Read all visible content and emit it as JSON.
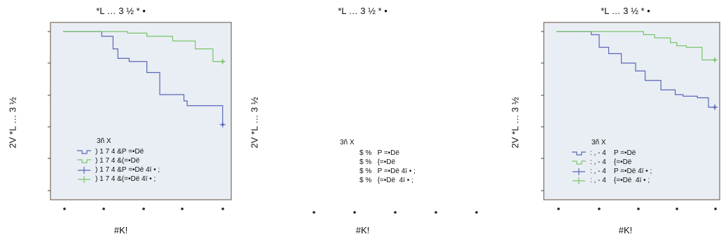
{
  "panels": [
    {
      "title": "*L … 3 ½ * •",
      "ylabel": "2V *L … 3 ½",
      "xlabel": "#K!",
      "legend_title": "3ñ X",
      "legend_items": [
        ") 1 7 4 &P =•Dë",
        ") 1 7 4 &(=•Dë",
        ") 1 7 4 &P =•Dë 4ï • ;",
        ") 1 7 4 &(=•Dë 4ï • ;"
      ]
    },
    {
      "title": "*L … 3 ½ * •",
      "ylabel": "2V *L … 3 ½",
      "xlabel": "#K!",
      "legend_title": "3ñ X",
      "legend_items": [
        "$ %   P =•Dë",
        "$ %   {=•Dë",
        "$ %   P =•Dë 4ï • ;",
        "$ %   {=•Dë  4ï • ;"
      ]
    },
    {
      "title": "*L … 3 ½ * •",
      "ylabel": "2V *L … 3 ½",
      "xlabel": "#K!",
      "legend_title": "3ñ X",
      "legend_items": [
        ": , - 4    P =•Dë",
        ": , - 4    {=•Dë",
        ": , - 4    P =•Dë 4ï • ;",
        ": , - 4    {=•Dë  4ï • ;"
      ]
    }
  ],
  "colors": {
    "blue": "#5a66b8",
    "green": "#7bc46b",
    "plot_bg": "#e9eef4",
    "frame": "#7a6a5a"
  },
  "chart_data": [
    {
      "type": "line",
      "xlim": [
        0,
        100
      ],
      "ylim": [
        0,
        1
      ],
      "grid": false,
      "legend_position": "bottom-left",
      "series": [
        {
          "name": ") 1 7 4 &P =•Dë",
          "step": true,
          "x": [
            0,
            24,
            31,
            34,
            41,
            52,
            60,
            75,
            77,
            86,
            99,
            100
          ],
          "y": [
            1,
            0.97,
            0.89,
            0.83,
            0.81,
            0.74,
            0.6,
            0.56,
            0.53,
            0.53,
            0.41,
            0.41
          ]
        },
        {
          "name": ") 1 7 4 &(=•Dë",
          "step": true,
          "x": [
            0,
            40,
            52,
            68,
            82,
            93,
            100
          ],
          "y": [
            1,
            0.99,
            0.97,
            0.94,
            0.89,
            0.81,
            0.81
          ]
        }
      ],
      "censored": [
        {
          "series": ") 1 7 4 &P =•Dë",
          "x": [
            99
          ],
          "y": [
            0.41
          ]
        },
        {
          "series": ") 1 7 4 &(=•Dë",
          "x": [
            99
          ],
          "y": [
            0.81
          ]
        }
      ]
    },
    {
      "type": "line",
      "xlim": [
        0,
        100
      ],
      "ylim": [
        0,
        1
      ],
      "grid": false,
      "legend_position": "bottom-left",
      "series": []
    },
    {
      "type": "line",
      "xlim": [
        0,
        100
      ],
      "ylim": [
        0,
        1
      ],
      "grid": false,
      "legend_position": "bottom-left",
      "series": [
        {
          "name": ": , - 4    P =•Dë",
          "step": true,
          "x": [
            0,
            22,
            27,
            33,
            41,
            50,
            56,
            66,
            75,
            80,
            89,
            96,
            100
          ],
          "y": [
            1,
            0.98,
            0.9,
            0.86,
            0.8,
            0.75,
            0.69,
            0.63,
            0.6,
            0.59,
            0.58,
            0.52,
            0.52
          ]
        },
        {
          "name": ": , - 4    {=•Dë",
          "step": true,
          "x": [
            0,
            55,
            62,
            72,
            76,
            82,
            92,
            100
          ],
          "y": [
            1,
            0.98,
            0.96,
            0.93,
            0.91,
            0.9,
            0.82,
            0.82
          ]
        }
      ],
      "censored": [
        {
          "series": ": , - 4    P =•Dë",
          "x": [
            100
          ],
          "y": [
            0.52
          ]
        },
        {
          "series": ": , - 4    {=•Dë",
          "x": [
            100
          ],
          "y": [
            0.82
          ]
        }
      ]
    }
  ]
}
